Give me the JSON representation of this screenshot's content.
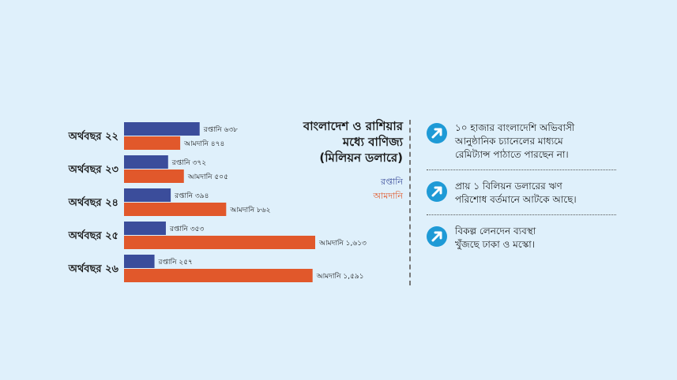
{
  "chart_data": {
    "type": "bar",
    "orientation": "horizontal",
    "title": "বাংলাদেশ ও রাশিয়ার মধ্যে বাণিজ্য (মিলিয়ন ডলারে)",
    "categories": [
      "অর্থবছর ২২",
      "অর্থবছর ২৩",
      "অর্থবছর ২৪",
      "অর্থবছর ২৫",
      "অর্থবছর ২৬"
    ],
    "series": [
      {
        "name": "রপ্তানি",
        "color": "#3b4d9b",
        "values": [
          638,
          372,
          394,
          353,
          257
        ],
        "labels": [
          "রপ্তানি ৬৩৮",
          "রপ্তানি ৩৭২",
          "রপ্তানি ৩৯৪",
          "রপ্তানি ৩৫৩",
          "রপ্তানি ২৫৭"
        ]
      },
      {
        "name": "আমদানি",
        "color": "#e1582b",
        "values": [
          474,
          505,
          862,
          1613,
          1591
        ],
        "labels": [
          "আমদানি ৪৭৪",
          "আমদানি ৫০৫",
          "আমদানি ৮৬২",
          "আমদানি ১,৬১৩",
          "আমদানি ১,৫৯১"
        ]
      }
    ],
    "xlim": [
      0,
      1613
    ],
    "grid": false,
    "legend": "right"
  },
  "title_lines": [
    "বাংলাদেশ ও রাশিয়ার",
    "মধ্যে বাণিজ্য",
    "(মিলিয়ন ডলারে)"
  ],
  "legend_items": [
    "রপ্তানি",
    "আমদানি"
  ],
  "notes": [
    {
      "icon": "arrow-up-right-icon",
      "lines": [
        "১০ হাজার বাংলাদেশি অভিবাসী",
        "আনুষ্ঠানিক চ্যানেলের মাধ্যমে",
        "রেমিট্যান্স পাঠাতে পারছেন না।"
      ]
    },
    {
      "icon": "arrow-up-right-icon",
      "lines": [
        "প্রায় ১ বিলিয়ন ডলারের ঋণ",
        "পরিশোধ বর্তমানে আটকে আছে।"
      ]
    },
    {
      "icon": "arrow-up-right-icon",
      "lines": [
        "বিকল্প লেনদেন ব্যবস্থা",
        "খুঁজছে ঢাকা ও মস্কো।"
      ]
    }
  ],
  "colors": {
    "background": "#dff0fb",
    "accent": "#1e9ad6"
  }
}
